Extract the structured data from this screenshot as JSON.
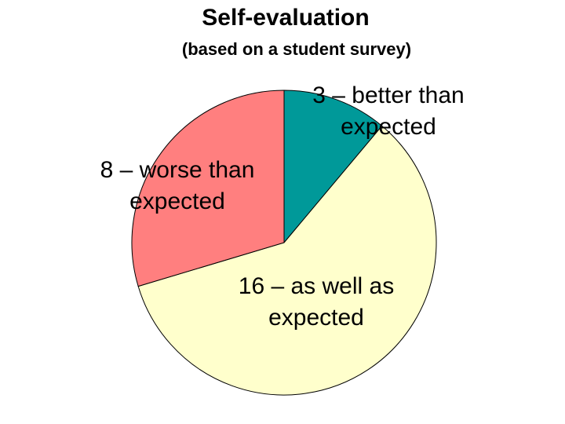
{
  "chart_data": {
    "type": "pie",
    "title": "Self-evaluation",
    "subtitle": "(based on a student survey)",
    "start": "top",
    "direction": "clockwise",
    "slices": [
      {
        "label_lines": [
          "3 – better than",
          "expected"
        ],
        "value": 3,
        "color": "#009999"
      },
      {
        "label_lines": [
          "16 – as well as",
          "expected"
        ],
        "value": 16,
        "color": "#FFFFCC"
      },
      {
        "label_lines": [
          "8 – worse than",
          "expected"
        ],
        "value": 8,
        "color": "#FF7F7F"
      }
    ],
    "edge_color": "#000000",
    "legend": "none"
  }
}
